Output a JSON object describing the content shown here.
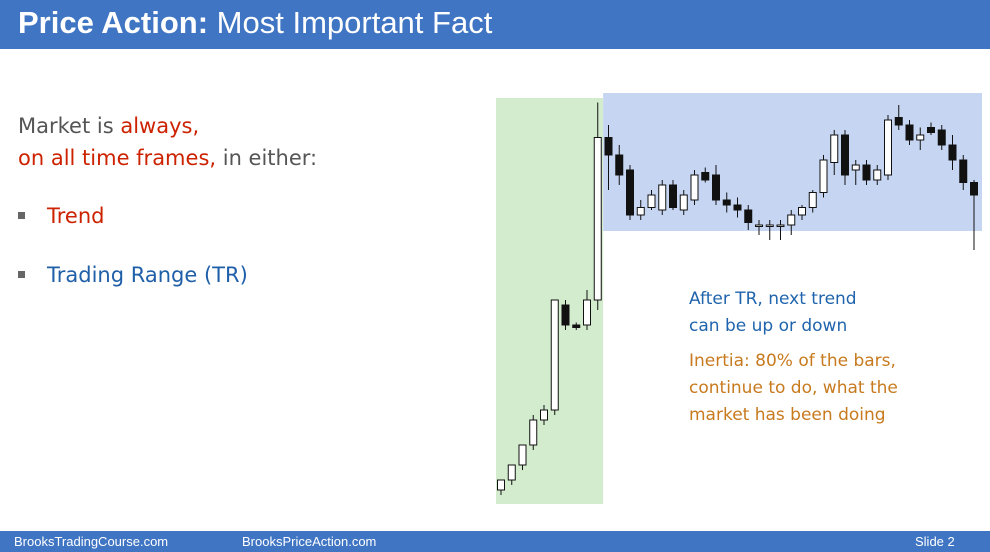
{
  "header": {
    "title_bold": "Price Action:",
    "title_rest": " Most Important Fact"
  },
  "intro": {
    "part1": "Market is ",
    "part2": "always,",
    "part3": "on all time frames,",
    "part4": " in either:"
  },
  "bullets": [
    "Trend",
    "Trading Range (TR)"
  ],
  "notes": {
    "tr_line1": "After TR, next trend",
    "tr_line2": "can be up or down",
    "inertia_line1": "Inertia: 80% of the bars,",
    "inertia_line2": "continue to do, what the",
    "inertia_line3": "market has been doing"
  },
  "footer": {
    "site1": "BrooksTradingCourse.com",
    "site2": "BrooksPriceAction.com",
    "slide": "Slide  2"
  },
  "colors": {
    "header_bg": "#3f75c3",
    "emphasis_red": "#cc2200",
    "tr_blue_text": "#1f64ad",
    "inertia_orange_text": "#c87a1e",
    "trend_zone": "#d3ecce",
    "range_zone": "#c6d5f2"
  },
  "chart_data": {
    "type": "candlestick",
    "zones": [
      "trend",
      "trading range"
    ],
    "bars": [
      {
        "o": 4,
        "h": 8,
        "l": 2,
        "c": 8
      },
      {
        "o": 8,
        "h": 14,
        "l": 6,
        "c": 14
      },
      {
        "o": 14,
        "h": 22,
        "l": 12,
        "c": 22
      },
      {
        "o": 22,
        "h": 34,
        "l": 20,
        "c": 32
      },
      {
        "o": 32,
        "h": 38,
        "l": 30,
        "c": 36
      },
      {
        "o": 36,
        "h": 80,
        "l": 34,
        "c": 80
      },
      {
        "o": 78,
        "h": 80,
        "l": 68,
        "c": 70
      },
      {
        "o": 70,
        "h": 71,
        "l": 68,
        "c": 69
      },
      {
        "o": 70,
        "h": 84,
        "l": 68,
        "c": 80
      },
      {
        "o": 80,
        "h": 159,
        "l": 76,
        "c": 145
      },
      {
        "o": 145,
        "h": 150,
        "l": 124,
        "c": 138
      },
      {
        "o": 138,
        "h": 142,
        "l": 126,
        "c": 130
      },
      {
        "o": 132,
        "h": 134,
        "l": 112,
        "c": 114
      },
      {
        "o": 114,
        "h": 120,
        "l": 112,
        "c": 117
      },
      {
        "o": 117,
        "h": 124,
        "l": 116,
        "c": 122
      },
      {
        "o": 116,
        "h": 128,
        "l": 114,
        "c": 126
      },
      {
        "o": 126,
        "h": 128,
        "l": 116,
        "c": 117
      },
      {
        "o": 116,
        "h": 124,
        "l": 114,
        "c": 122
      },
      {
        "o": 120,
        "h": 132,
        "l": 118,
        "c": 130
      },
      {
        "o": 131,
        "h": 133,
        "l": 127,
        "c": 128
      },
      {
        "o": 130,
        "h": 134,
        "l": 118,
        "c": 120
      },
      {
        "o": 120,
        "h": 123,
        "l": 115,
        "c": 118
      },
      {
        "o": 118,
        "h": 121,
        "l": 113,
        "c": 116
      },
      {
        "o": 116,
        "h": 118,
        "l": 108,
        "c": 111
      },
      {
        "o": 110,
        "h": 112,
        "l": 106,
        "c": 110
      },
      {
        "o": 110,
        "h": 112,
        "l": 104,
        "c": 110
      },
      {
        "o": 110,
        "h": 112,
        "l": 104,
        "c": 110
      },
      {
        "o": 110,
        "h": 116,
        "l": 106,
        "c": 114
      },
      {
        "o": 114,
        "h": 118,
        "l": 112,
        "c": 117
      },
      {
        "o": 117,
        "h": 124,
        "l": 115,
        "c": 123
      },
      {
        "o": 123,
        "h": 138,
        "l": 121,
        "c": 136
      },
      {
        "o": 135,
        "h": 148,
        "l": 130,
        "c": 146
      },
      {
        "o": 146,
        "h": 148,
        "l": 126,
        "c": 130
      },
      {
        "o": 132,
        "h": 136,
        "l": 126,
        "c": 134
      },
      {
        "o": 134,
        "h": 136,
        "l": 126,
        "c": 128
      },
      {
        "o": 128,
        "h": 134,
        "l": 126,
        "c": 132
      },
      {
        "o": 130,
        "h": 154,
        "l": 128,
        "c": 152
      },
      {
        "o": 153,
        "h": 158,
        "l": 148,
        "c": 150
      },
      {
        "o": 150,
        "h": 152,
        "l": 142,
        "c": 144
      },
      {
        "o": 144,
        "h": 149,
        "l": 140,
        "c": 146
      },
      {
        "o": 149,
        "h": 151,
        "l": 146,
        "c": 147
      },
      {
        "o": 148,
        "h": 150,
        "l": 140,
        "c": 142
      },
      {
        "o": 142,
        "h": 146,
        "l": 132,
        "c": 136
      },
      {
        "o": 136,
        "h": 138,
        "l": 124,
        "c": 127
      },
      {
        "o": 127,
        "h": 128,
        "l": 100,
        "c": 122
      }
    ],
    "trend_bar_count": 10
  }
}
